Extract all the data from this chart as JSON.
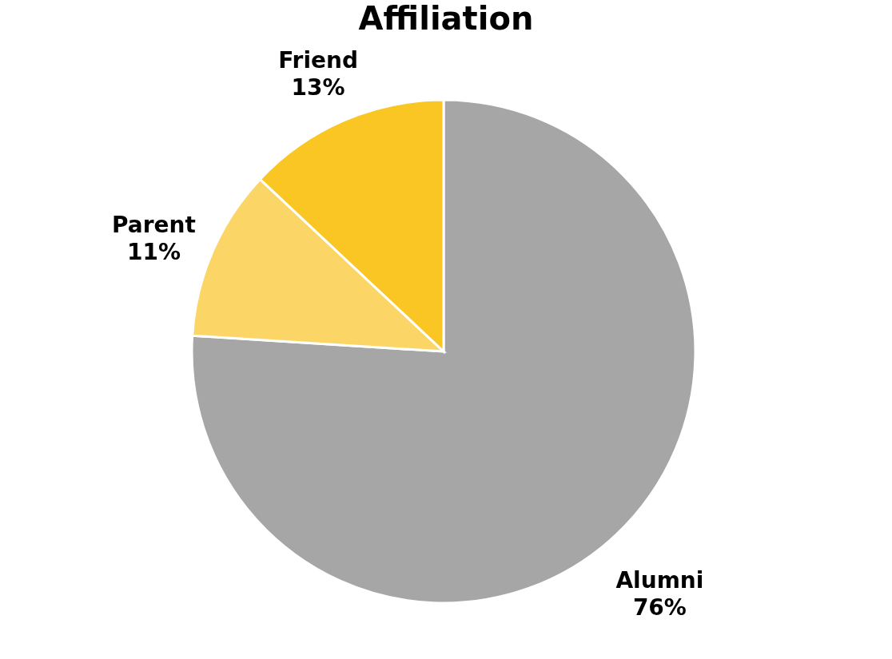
{
  "chart_data": {
    "type": "pie",
    "title": "Affiliation",
    "categories": [
      "Alumni",
      "Parent",
      "Friend"
    ],
    "values": [
      76,
      11,
      13
    ],
    "value_labels": [
      "76%",
      "11%",
      "13%"
    ],
    "colors": [
      "#a6a6a6",
      "#fbd667",
      "#f9c623"
    ],
    "legend": false
  }
}
